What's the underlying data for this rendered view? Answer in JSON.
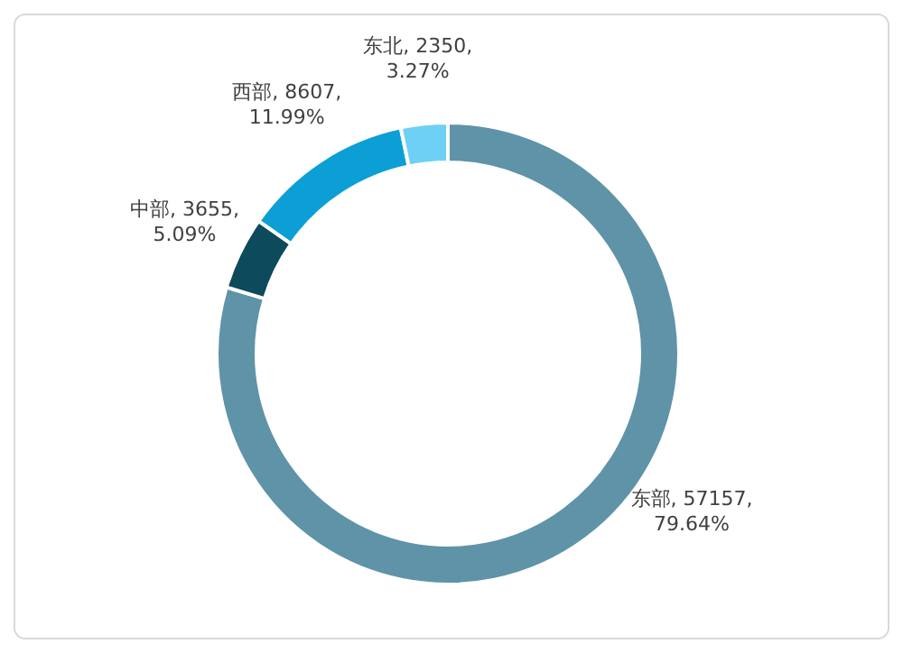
{
  "chart_data": {
    "type": "donut",
    "categories": [
      "东部",
      "中部",
      "西部",
      "东北"
    ],
    "values": [
      57157,
      3655,
      8607,
      2350
    ],
    "colors": [
      "#5f93a8",
      "#0c4a5c",
      "#0b9fd6",
      "#6fd0f5"
    ],
    "value_labels": [
      "57157, 79.64%",
      "3655, 5.09%",
      "8607, 11.99%",
      "2350, 3.27%"
    ]
  }
}
